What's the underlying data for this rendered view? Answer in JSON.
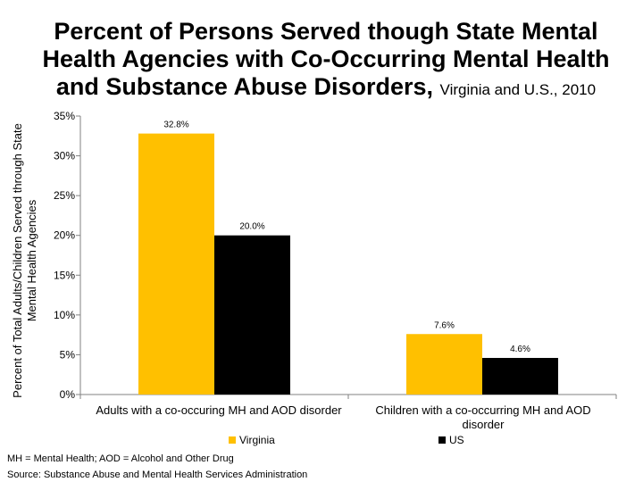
{
  "title_main": "Percent of Persons Served though State Mental Health Agencies with Co-Occurring Mental Health and Substance Abuse Disorders,",
  "title_sub": "Virginia and U.S., 2010",
  "footnote": "MH = Mental Health; AOD = Alcohol and Other Drug",
  "source": "Source: Substance Abuse and Mental Health Services Administration",
  "colors": {
    "virginia": "#FFC000",
    "us": "#000000"
  },
  "chart_data": {
    "type": "bar",
    "title": "Percent of Persons Served though State Mental Health Agencies with Co-Occurring Mental Health and Substance Abuse Disorders, Virginia and U.S., 2010",
    "ylabel": "Percent of Total Adults/Children Served through State Mental Health Agencies",
    "xlabel": "",
    "ylim": [
      0,
      35
    ],
    "yticks": [
      "0%",
      "5%",
      "10%",
      "15%",
      "20%",
      "25%",
      "30%",
      "35%"
    ],
    "categories": [
      "Adults with a co-occuring MH and AOD disorder",
      "Children with a co-occurring MH and AOD disorder"
    ],
    "series": [
      {
        "name": "Virginia",
        "values": [
          32.8,
          7.6
        ],
        "labels": [
          "32.8%",
          "7.6%"
        ]
      },
      {
        "name": "US",
        "values": [
          20.0,
          4.6
        ],
        "labels": [
          "20.0%",
          "4.6%"
        ]
      }
    ],
    "legend": "bottom"
  }
}
